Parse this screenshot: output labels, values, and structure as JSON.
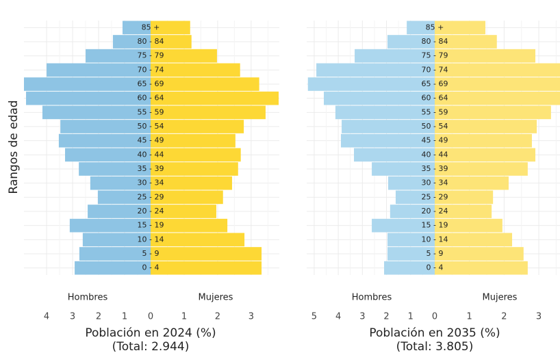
{
  "chart_data": [
    {
      "type": "bar",
      "orientation": "pyramid",
      "title": "Población en 2024 (%)",
      "subtitle": "(Total: 2.944)",
      "y_label": "Rangos de edad",
      "categories": [
        "0 - 4",
        "5 - 9",
        "10 - 14",
        "15 - 19",
        "20 - 24",
        "25 - 29",
        "30 - 34",
        "35 - 39",
        "40 - 44",
        "45 - 49",
        "50 - 54",
        "55 - 59",
        "60 - 64",
        "65 - 69",
        "70 - 74",
        "75 - 79",
        "80 - 84",
        "85 +"
      ],
      "series": [
        {
          "name": "Hombres",
          "color": "#8ec4e4",
          "xlim": [
            0,
            4.87
          ],
          "xticks": [
            1,
            2,
            3,
            4
          ],
          "values": [
            2.92,
            2.74,
            2.61,
            3.11,
            2.42,
            2.03,
            2.32,
            2.76,
            3.29,
            3.53,
            3.47,
            4.16,
            4.79,
            4.87,
            4.0,
            2.5,
            1.45,
            1.08
          ]
        },
        {
          "name": "Mujeres",
          "color": "#fdd835",
          "xlim": [
            0,
            3.84
          ],
          "xticks": [
            0,
            1,
            2,
            3
          ],
          "values": [
            3.31,
            3.31,
            2.8,
            2.29,
            1.96,
            2.16,
            2.43,
            2.61,
            2.69,
            2.53,
            2.78,
            3.43,
            3.82,
            3.24,
            2.67,
            1.98,
            1.22,
            1.18
          ]
        }
      ],
      "grid": true
    },
    {
      "type": "bar",
      "orientation": "pyramid",
      "title": "Población en 2035 (%)",
      "subtitle": "(Total: 3.805)",
      "categories": [
        "0 - 4",
        "5 - 9",
        "10 - 14",
        "15 - 19",
        "20 - 24",
        "25 - 29",
        "30 - 34",
        "35 - 39",
        "40 - 44",
        "45 - 49",
        "50 - 54",
        "55 - 59",
        "60 - 64",
        "65 - 69",
        "70 - 74",
        "75 - 79",
        "80 - 84",
        "85 +"
      ],
      "series": [
        {
          "name": "Hombres",
          "color": "#acd7ee",
          "xlim": [
            0,
            5.31
          ],
          "xticks": [
            1,
            2,
            3,
            4,
            5
          ],
          "values": [
            2.1,
            1.96,
            1.96,
            2.61,
            1.85,
            1.62,
            1.93,
            2.61,
            3.35,
            3.89,
            3.86,
            4.12,
            4.6,
            5.26,
            4.91,
            3.32,
            1.96,
            1.16
          ]
        },
        {
          "name": "Mujeres",
          "color": "#fde477",
          "xlim": [
            0,
            3.61
          ],
          "xticks": [
            0,
            1,
            2,
            3
          ],
          "values": [
            2.68,
            2.56,
            2.23,
            1.95,
            1.64,
            1.68,
            2.13,
            2.68,
            2.9,
            2.8,
            2.94,
            3.35,
            3.75,
            3.9,
            3.7,
            2.9,
            1.79,
            1.46
          ]
        }
      ],
      "grid": true
    }
  ]
}
